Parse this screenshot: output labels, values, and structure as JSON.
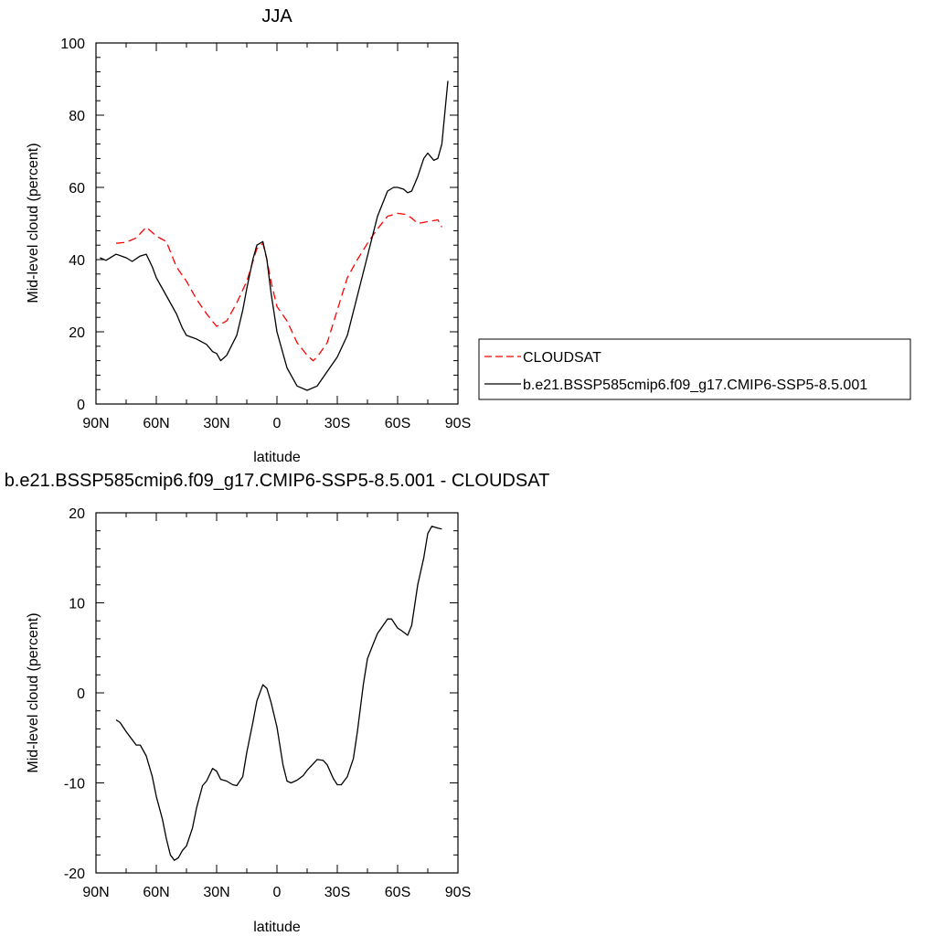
{
  "chart_data": [
    {
      "type": "line",
      "title": "JJA",
      "xlabel": "latitude",
      "ylabel": "Mid-level cloud (percent)",
      "xlim": [
        90,
        -90
      ],
      "ylim": [
        0,
        100
      ],
      "x_ticks": [
        90,
        60,
        30,
        0,
        -30,
        -60,
        -90
      ],
      "x_tick_labels": [
        "90N",
        "60N",
        "30N",
        "0",
        "30S",
        "60S",
        "90S"
      ],
      "y_ticks": [
        0,
        20,
        40,
        60,
        80,
        100
      ],
      "y_tick_labels": [
        "0",
        "20",
        "40",
        "60",
        "80",
        "100"
      ],
      "legend_position": "right",
      "series": [
        {
          "name": "CLOUDSAT",
          "color": "#ff0000",
          "style": "dashed",
          "x": [
            80,
            75,
            70,
            65,
            62,
            60,
            55,
            50,
            45,
            40,
            35,
            30,
            25,
            20,
            15,
            10,
            7,
            5,
            3,
            0,
            -5,
            -10,
            -15,
            -18,
            -20,
            -25,
            -30,
            -35,
            -40,
            -45,
            -50,
            -55,
            -60,
            -64,
            -67,
            -70,
            -75,
            -80,
            -82
          ],
          "y": [
            44.5,
            44.8,
            46,
            49,
            47.5,
            46.5,
            45,
            38,
            34,
            29,
            25,
            21.5,
            23,
            28,
            34,
            43,
            44.5,
            40,
            34,
            27,
            23,
            17,
            13.5,
            12,
            13,
            17,
            26,
            35,
            40,
            44.5,
            48.5,
            52,
            52.8,
            52.5,
            51.5,
            50,
            50.5,
            51,
            49
          ]
        },
        {
          "name": "b.e21.BSSP585cmip6.f09_g17.CMIP6-SSP5-8.5.001",
          "color": "#000000",
          "style": "solid",
          "x": [
            88,
            85,
            80,
            75,
            72,
            68,
            65,
            62,
            60,
            55,
            50,
            47,
            45,
            40,
            35,
            32,
            30,
            28,
            25,
            20,
            17,
            15,
            12,
            10,
            7,
            5,
            3,
            0,
            -5,
            -10,
            -15,
            -20,
            -25,
            -30,
            -35,
            -40,
            -45,
            -50,
            -55,
            -58,
            -60,
            -63,
            -65,
            -67,
            -70,
            -73,
            -75,
            -78,
            -80,
            -82,
            -85
          ],
          "y": [
            40.5,
            39.8,
            41.5,
            40.5,
            39.5,
            41,
            41.5,
            38,
            35,
            30,
            25,
            21,
            19,
            18,
            16.5,
            14.5,
            14,
            12,
            13.5,
            19,
            26,
            32,
            40,
            44,
            45,
            40,
            31,
            20,
            10,
            5,
            3.8,
            5,
            9,
            13,
            19,
            30,
            41,
            52,
            59,
            60,
            60,
            59.5,
            58.5,
            59,
            63,
            68,
            69.5,
            67.5,
            68,
            72,
            89.5
          ]
        }
      ]
    },
    {
      "type": "line",
      "title": "b.e21.BSSP585cmip6.f09_g17.CMIP6-SSP5-8.5.001 - CLOUDSAT",
      "xlabel": "latitude",
      "ylabel": "Mid-level cloud (percent)",
      "xlim": [
        90,
        -90
      ],
      "ylim": [
        -20,
        20
      ],
      "x_ticks": [
        90,
        60,
        30,
        0,
        -30,
        -60,
        -90
      ],
      "x_tick_labels": [
        "90N",
        "60N",
        "30N",
        "0",
        "30S",
        "60S",
        "90S"
      ],
      "y_ticks": [
        -20,
        -10,
        0,
        10,
        20
      ],
      "y_tick_labels": [
        "-20",
        "-10",
        "0",
        "10",
        "20"
      ],
      "series": [
        {
          "color": "#000000",
          "style": "solid",
          "x": [
            80,
            78,
            75,
            72,
            70,
            68,
            65,
            62,
            60,
            57,
            55,
            53,
            51,
            49,
            47,
            45,
            42,
            40,
            37,
            35,
            32,
            30,
            28,
            25,
            22,
            20,
            17,
            15,
            12,
            10,
            7,
            5,
            3,
            0,
            -3,
            -5,
            -7,
            -10,
            -13,
            -15,
            -20,
            -23,
            -25,
            -28,
            -30,
            -32,
            -35,
            -38,
            -40,
            -43,
            -45,
            -48,
            -50,
            -55,
            -57,
            -60,
            -62,
            -65,
            -67,
            -70,
            -73,
            -75,
            -77,
            -80,
            -82
          ],
          "y": [
            -3,
            -3.3,
            -4.3,
            -5.2,
            -5.8,
            -5.8,
            -7,
            -9.3,
            -11.5,
            -14,
            -16.2,
            -18,
            -18.6,
            -18.3,
            -17.5,
            -17,
            -15,
            -12.8,
            -10.3,
            -9.8,
            -8.4,
            -8.7,
            -9.6,
            -9.8,
            -10.2,
            -10.3,
            -9.3,
            -6.6,
            -3.3,
            -0.9,
            0.9,
            0.5,
            -1,
            -3.8,
            -8,
            -9.8,
            -10,
            -9.7,
            -9.2,
            -8.6,
            -7.4,
            -7.5,
            -8,
            -9.5,
            -10.2,
            -10.2,
            -9.3,
            -7.3,
            -4.3,
            1,
            3.8,
            5.5,
            6.6,
            8.2,
            8.2,
            7.2,
            6.9,
            6.4,
            7.5,
            12,
            15,
            17.7,
            18.5,
            18.3,
            18.2
          ]
        }
      ]
    }
  ]
}
